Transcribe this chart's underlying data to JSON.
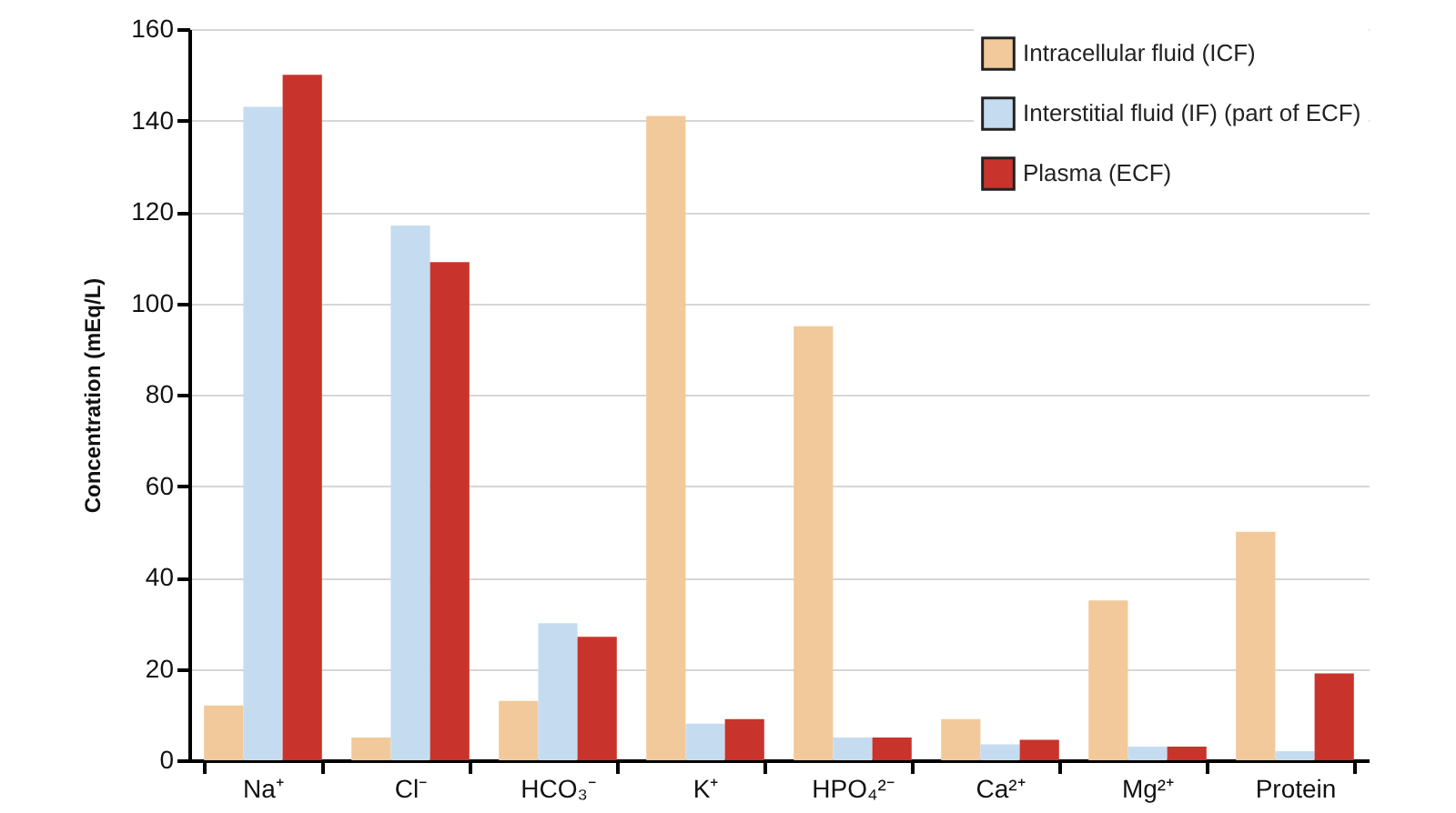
{
  "chart_data": {
    "type": "bar",
    "ylabel": "Concentration (mEq/L)",
    "categories": [
      "Na⁺",
      "Cl⁻",
      "HCO₃⁻",
      "K⁺",
      "HPO₄²⁻",
      "Ca²⁺",
      "Mg²⁺",
      "Protein"
    ],
    "series": [
      {
        "name": "Intracellular fluid (ICF)",
        "color": "#f2c99a",
        "values": [
          12,
          5,
          13,
          141,
          95,
          9,
          35,
          50
        ]
      },
      {
        "name": "Interstitial fluid (IF) (part of ECF)",
        "color": "#c5dcf0",
        "values": [
          143,
          117,
          30,
          8,
          5,
          3.5,
          3,
          2
        ]
      },
      {
        "name": "Plasma (ECF)",
        "color": "#c8342b",
        "values": [
          150,
          109,
          27,
          9,
          5,
          4.5,
          3,
          19
        ]
      }
    ],
    "ylim": [
      0,
      160
    ],
    "yticks": [
      0,
      20,
      40,
      60,
      80,
      100,
      120,
      140,
      160
    ],
    "grid": "y",
    "legend": "top right"
  }
}
